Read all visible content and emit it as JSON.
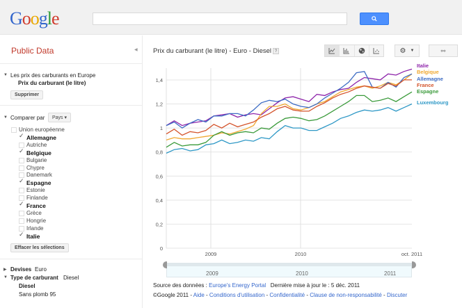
{
  "header": {
    "logo": [
      "G",
      "o",
      "o",
      "g",
      "l",
      "e"
    ],
    "search_placeholder": "",
    "search_icon": "search-icon"
  },
  "sidebar": {
    "title": "Public Data",
    "dataset": {
      "parent": "Les prix des carburants en Europe",
      "metric": "Prix du carburant (le litre)",
      "remove_label": "Supprimer"
    },
    "compare": {
      "label": "Comparer par",
      "dropdown_value": "Pays",
      "items": [
        {
          "label": "Union européenne",
          "checked": false
        },
        {
          "label": "Allemagne",
          "checked": true
        },
        {
          "label": "Autriche",
          "checked": false
        },
        {
          "label": "Belgique",
          "checked": true
        },
        {
          "label": "Bulgarie",
          "checked": false
        },
        {
          "label": "Chypre",
          "checked": false
        },
        {
          "label": "Danemark",
          "checked": false
        },
        {
          "label": "Espagne",
          "checked": true
        },
        {
          "label": "Estonie",
          "checked": false
        },
        {
          "label": "Finlande",
          "checked": false
        },
        {
          "label": "France",
          "checked": true
        },
        {
          "label": "Grèce",
          "checked": false
        },
        {
          "label": "Hongrie",
          "checked": false
        },
        {
          "label": "Irlande",
          "checked": false
        },
        {
          "label": "Italie",
          "checked": true
        }
      ],
      "clear_label": "Effacer les sélections"
    },
    "currency": {
      "label": "Devises",
      "value": "Euro"
    },
    "fuel_type": {
      "label": "Type de carburant",
      "value": "Diesel",
      "options": [
        "Diesel",
        "Sans plomb 95"
      ]
    }
  },
  "main": {
    "chart_title": "Prix du carburant (le litre) - Euro - Diesel",
    "help": "?",
    "views": [
      "line-chart-icon",
      "bar-chart-icon",
      "map-icon",
      "scatter-chart-icon"
    ],
    "active_view": 0,
    "timeline": {
      "labels": [
        "2009",
        "2010",
        "2011"
      ]
    },
    "source_label": "Source des données :",
    "source_link": "Europe's Energy Portal",
    "updated": "Dernière mise à jour le : 5 déc. 2011",
    "footer": {
      "copyright": "©Google 2011 -",
      "links": [
        "Aide",
        "Conditions d'utilisation",
        "Confidentialité",
        "Clause de non-responsabilité",
        "Discuter"
      ]
    }
  },
  "chart_data": {
    "type": "line",
    "title": "Prix du carburant (le litre) - Euro - Diesel",
    "xlabel": "",
    "ylabel": "",
    "ylim": [
      0,
      1.5
    ],
    "yticks": [
      "0",
      "0,2",
      "0,4",
      "0,6",
      "0,8",
      "1",
      "1,2",
      "1,4"
    ],
    "xticks": [
      "2009",
      "2010",
      "oct. 2011"
    ],
    "grid": true,
    "legend_position": "right (end of lines)",
    "x_note": "approx. monthly points from mid-2008 to oct. 2011",
    "series": [
      {
        "name": "Italie",
        "color": "#8e24aa",
        "values": [
          1.02,
          1.06,
          1.02,
          1.04,
          1.05,
          1.06,
          1.1,
          1.11,
          1.12,
          1.09,
          1.11,
          1.12,
          1.11,
          1.16,
          1.21,
          1.25,
          1.26,
          1.24,
          1.22,
          1.28,
          1.27,
          1.3,
          1.32,
          1.33,
          1.38,
          1.42,
          1.41,
          1.4,
          1.45,
          1.44,
          1.47,
          1.49
        ]
      },
      {
        "name": "Belgique",
        "color": "#f0a830",
        "values": [
          0.9,
          0.92,
          0.91,
          0.91,
          0.92,
          0.93,
          0.94,
          0.96,
          0.95,
          0.97,
          0.99,
          1.02,
          1.12,
          1.18,
          1.18,
          1.2,
          1.16,
          1.15,
          1.17,
          1.2,
          1.22,
          1.26,
          1.3,
          1.32,
          1.34,
          1.35,
          1.33,
          1.35,
          1.38,
          1.36,
          1.4,
          1.45
        ]
      },
      {
        "name": "Allemagne",
        "color": "#3d6cc4",
        "values": [
          1.02,
          1.05,
          1.0,
          1.04,
          1.07,
          1.05,
          1.1,
          1.1,
          1.12,
          1.12,
          1.1,
          1.15,
          1.21,
          1.23,
          1.22,
          1.24,
          1.2,
          1.18,
          1.17,
          1.2,
          1.25,
          1.29,
          1.33,
          1.38,
          1.46,
          1.47,
          1.34,
          1.33,
          1.38,
          1.34,
          1.42,
          1.45
        ]
      },
      {
        "name": "France",
        "color": "#d4542c",
        "values": [
          0.95,
          0.99,
          0.94,
          0.97,
          0.96,
          0.98,
          1.03,
          1.0,
          1.04,
          1.01,
          1.03,
          1.05,
          1.09,
          1.12,
          1.16,
          1.18,
          1.15,
          1.14,
          1.14,
          1.18,
          1.21,
          1.25,
          1.28,
          1.3,
          1.33,
          1.35,
          1.34,
          1.33,
          1.37,
          1.35,
          1.4,
          1.4
        ]
      },
      {
        "name": "Espagne",
        "color": "#3a9a3a",
        "values": [
          0.84,
          0.88,
          0.85,
          0.86,
          0.86,
          0.88,
          0.94,
          0.97,
          0.94,
          0.96,
          0.97,
          0.96,
          1.0,
          0.99,
          1.04,
          1.08,
          1.09,
          1.08,
          1.06,
          1.07,
          1.1,
          1.14,
          1.18,
          1.22,
          1.27,
          1.27,
          1.22,
          1.23,
          1.25,
          1.22,
          1.26,
          1.3
        ]
      },
      {
        "name": "Luxembourg",
        "color": "#2e98c6",
        "values": [
          0.79,
          0.82,
          0.83,
          0.81,
          0.82,
          0.86,
          0.87,
          0.9,
          0.87,
          0.88,
          0.9,
          0.89,
          0.92,
          0.91,
          0.97,
          1.02,
          1.0,
          1.0,
          0.98,
          0.98,
          1.01,
          1.04,
          1.08,
          1.1,
          1.13,
          1.15,
          1.14,
          1.15,
          1.17,
          1.14,
          1.17,
          1.2
        ]
      }
    ]
  }
}
